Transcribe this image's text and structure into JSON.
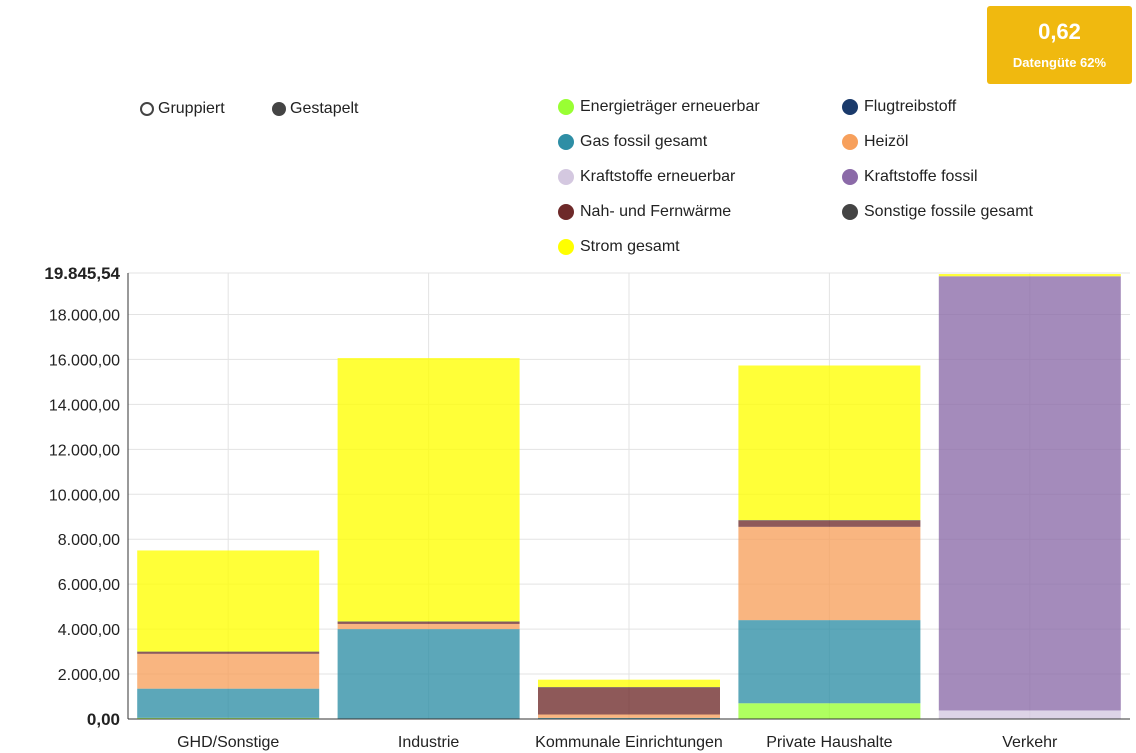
{
  "badge": {
    "score": "0,62",
    "label": "Datengüte 62%"
  },
  "modes": [
    {
      "label": "Gruppiert",
      "selected": false
    },
    {
      "label": "Gestapelt",
      "selected": true
    }
  ],
  "chart_data": {
    "type": "bar",
    "stacked": true,
    "categories": [
      "GHD/Sonstige",
      "Industrie",
      "Kommunale Einrichtungen",
      "Private Haushalte",
      "Verkehr"
    ],
    "ylim": [
      0,
      19845.54
    ],
    "yticks": [
      "0,00",
      "2.000,00",
      "4.000,00",
      "6.000,00",
      "8.000,00",
      "10.000,00",
      "12.000,00",
      "14.000,00",
      "16.000,00",
      "18.000,00",
      "19.845,54"
    ],
    "ytick_values": [
      0,
      2000,
      4000,
      6000,
      8000,
      10000,
      12000,
      14000,
      16000,
      18000,
      19845.54
    ],
    "grid": true,
    "legend_position": "top-right",
    "series": [
      {
        "name": "Energieträger erneuerbar",
        "color": "#99ff33",
        "values": [
          50,
          0,
          0,
          700,
          0
        ]
      },
      {
        "name": "Flugtreibstoff",
        "color": "#1a3a6b",
        "values": [
          0,
          0,
          0,
          0,
          0
        ]
      },
      {
        "name": "Gas fossil gesamt",
        "color": "#2e8ea5",
        "values": [
          1300,
          4000,
          50,
          3700,
          0
        ]
      },
      {
        "name": "Heizöl",
        "color": "#f7a05c",
        "values": [
          1550,
          230,
          150,
          4150,
          0
        ]
      },
      {
        "name": "Kraftstoffe erneuerbar",
        "color": "#d4c8e0",
        "values": [
          0,
          0,
          0,
          0,
          380
        ]
      },
      {
        "name": "Kraftstoffe fossil",
        "color": "#8b6aa8",
        "values": [
          0,
          0,
          0,
          0,
          19320
        ]
      },
      {
        "name": "Nah- und Fernwärme",
        "color": "#6e2a2a",
        "values": [
          80,
          90,
          1200,
          280,
          0
        ]
      },
      {
        "name": "Sonstige fossile gesamt",
        "color": "#444444",
        "values": [
          20,
          20,
          20,
          20,
          0
        ]
      },
      {
        "name": "Strom gesamt",
        "color": "#ffff00",
        "values": [
          4500,
          11720,
          330,
          6880,
          100
        ]
      }
    ]
  }
}
